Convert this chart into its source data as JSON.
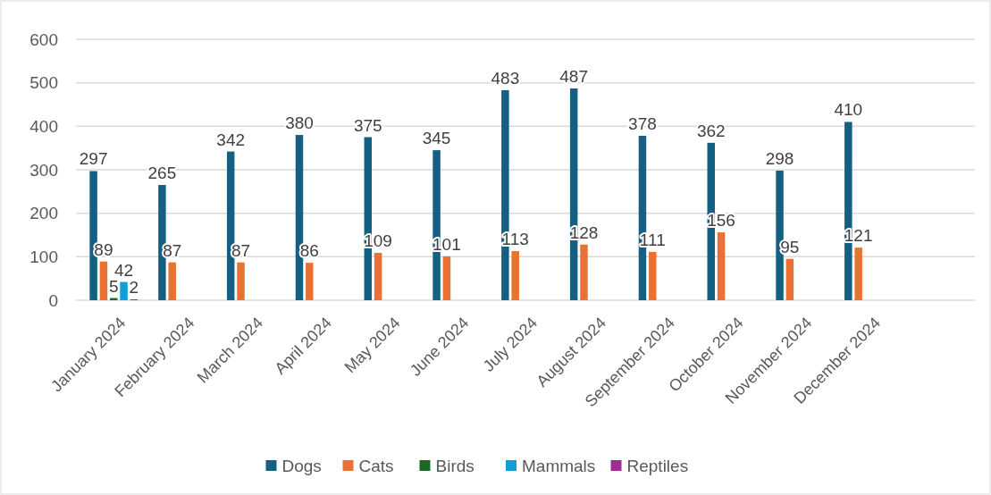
{
  "chart_data": {
    "type": "bar",
    "categories": [
      "January 2024",
      "February 2024",
      "March 2024",
      "April 2024",
      "May 2024",
      "June 2024",
      "July 2024",
      "August 2024",
      "September 2024",
      "October 2024",
      "November 2024",
      "December 2024",
      null
    ],
    "series": [
      {
        "name": "Dogs",
        "color": "#156082",
        "values": [
          297,
          265,
          342,
          380,
          375,
          345,
          483,
          487,
          378,
          362,
          298,
          410,
          null
        ]
      },
      {
        "name": "Cats",
        "color": "#e97132",
        "values": [
          89,
          87,
          87,
          86,
          109,
          101,
          113,
          128,
          111,
          156,
          95,
          121,
          null
        ]
      },
      {
        "name": "Birds",
        "color": "#196b24",
        "values": [
          5,
          null,
          null,
          null,
          null,
          null,
          null,
          null,
          null,
          null,
          null,
          null,
          null
        ]
      },
      {
        "name": "Mammals",
        "color": "#0f9ed5",
        "values": [
          42,
          null,
          null,
          null,
          null,
          null,
          null,
          null,
          null,
          null,
          null,
          null,
          null
        ]
      },
      {
        "name": "Reptiles",
        "color": "#a02b93",
        "values": [
          2,
          null,
          null,
          null,
          null,
          null,
          null,
          null,
          null,
          null,
          null,
          null,
          null
        ]
      }
    ],
    "ylim": [
      0,
      600
    ],
    "yticks": [
      0,
      100,
      200,
      300,
      400,
      500,
      600
    ],
    "grid": "y",
    "legend": "bottom",
    "data_labels": true
  }
}
